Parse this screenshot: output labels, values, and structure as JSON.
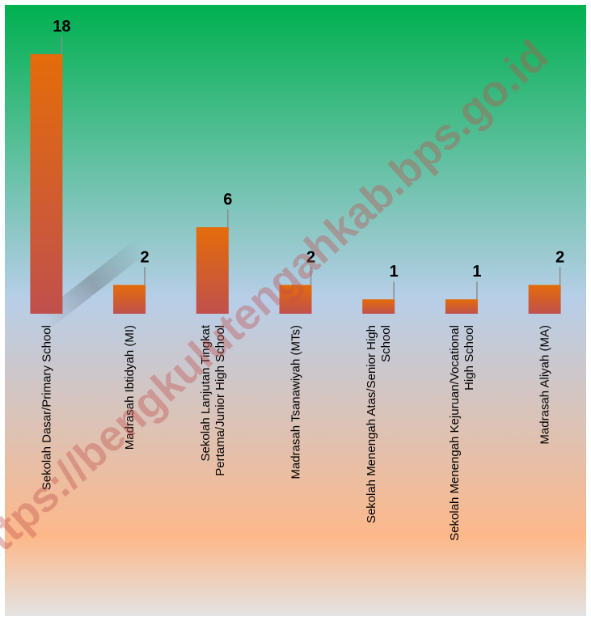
{
  "chart_data": {
    "type": "bar",
    "categories": [
      "Sekolah Dasar/Primary School",
      "Madrasah Ibtidyah (MI)",
      "Sekolah Lanjutan Tingkat Pertama/Junior High School",
      "Madrasah Tsanawiyah (MTs)",
      "Sekolah Menengah Atas/Senior High School",
      "Sekolah Menengah Kejuruan/Vocational High School",
      "Madrasah Aliyah (MA)"
    ],
    "category_lines": [
      [
        "Sekolah Dasar/Primary School"
      ],
      [
        "Madrasah Ibtidyah (MI)"
      ],
      [
        "Sekolah Lanjutan Tingkat",
        "Pertama/Junior High School"
      ],
      [
        "Madrasah Tsanawiyah (MTs)"
      ],
      [
        "Sekolah Menengah Atas/Senior High",
        "School"
      ],
      [
        "Sekolah Menengah Kejuruan/Vocational",
        "High School"
      ],
      [
        "Madrasah Aliyah (MA)"
      ]
    ],
    "values": [
      18,
      2,
      6,
      2,
      1,
      1,
      2
    ],
    "data_labels": [
      "18",
      "2",
      "6",
      "2",
      "1",
      "1",
      "2"
    ],
    "ylim": [
      0,
      18
    ],
    "grid": false,
    "legend": "none",
    "title": "",
    "xlabel": "",
    "ylabel": ""
  },
  "watermark": "https://bengkulutengahkab.bps.go.id",
  "colors": {
    "bar_top": "#e46c0a",
    "bar_bottom": "#c0504d",
    "bg_top": "#00b050",
    "bg_mid": "#b7cee8",
    "bg_low": "#fdb88a",
    "bg_bottom": "#e3e3e3",
    "leader": "#8c8c8c"
  }
}
